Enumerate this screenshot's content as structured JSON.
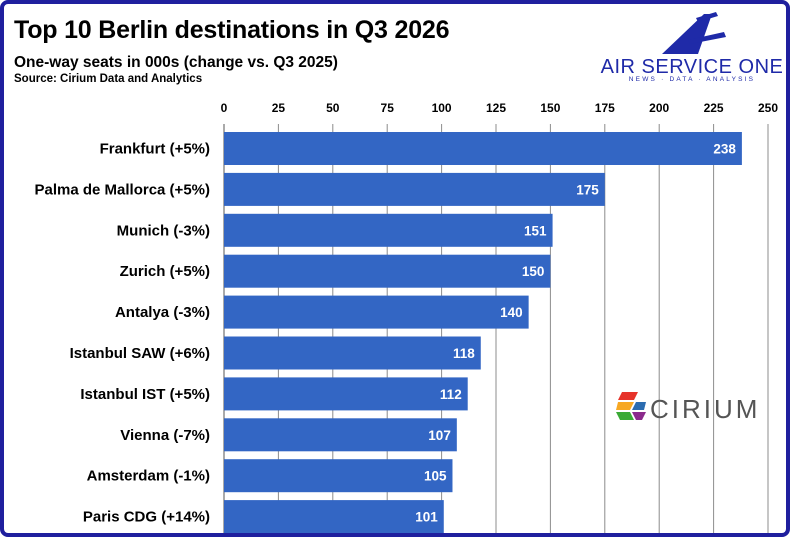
{
  "title": "Top 10 Berlin destinations in Q3 2026",
  "subtitle": "One-way seats in 000s (change vs. Q3 2025)",
  "source": "Source: Cirium Data and Analytics",
  "logos": {
    "airserviceone_name": "AIR SERVICE ONE",
    "airserviceone_tagline": "NEWS · DATA · ANALYSIS",
    "cirium_name": "CIRIUM"
  },
  "colors": {
    "bar": "#3366c4",
    "border": "#1f1f9e",
    "brand_blue": "#1f2aa8"
  },
  "chart_data": {
    "type": "bar",
    "orientation": "horizontal",
    "categories": [
      "Frankfurt (+5%)",
      "Palma de Mallorca (+5%)",
      "Munich (-3%)",
      "Zurich (+5%)",
      "Antalya (-3%)",
      "Istanbul SAW (+6%)",
      "Istanbul IST (+5%)",
      "Vienna (-7%)",
      "Amsterdam (-1%)",
      "Paris CDG (+14%)"
    ],
    "values": [
      238,
      175,
      151,
      150,
      140,
      118,
      112,
      107,
      105,
      101
    ],
    "xlim": [
      0,
      250
    ],
    "ticks": [
      0,
      25,
      50,
      75,
      100,
      125,
      150,
      175,
      200,
      225,
      250
    ],
    "axis_position": "top",
    "grid": true,
    "data_labels": true
  }
}
